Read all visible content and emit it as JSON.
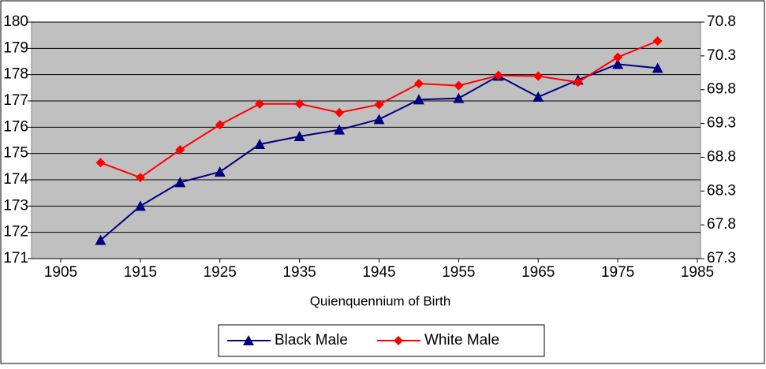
{
  "chart_data": {
    "type": "line",
    "x_label": "Quienquennium of Birth",
    "x": [
      1910,
      1915,
      1920,
      1925,
      1930,
      1935,
      1940,
      1945,
      1950,
      1955,
      1960,
      1965,
      1970,
      1975,
      1980
    ],
    "series": [
      {
        "name": "Black Male",
        "color": "#000080",
        "marker": "triangle",
        "values": [
          171.7,
          173.0,
          173.9,
          174.3,
          175.35,
          175.65,
          175.9,
          176.3,
          177.05,
          177.1,
          177.95,
          177.15,
          177.8,
          178.4,
          178.25
        ]
      },
      {
        "name": "White Male",
        "color": "#ff0000",
        "marker": "diamond",
        "axis": "y2",
        "values": [
          68.72,
          68.5,
          68.91,
          69.28,
          69.59,
          69.59,
          69.46,
          69.58,
          69.89,
          69.86,
          70.01,
          70.0,
          69.91,
          70.28,
          70.52
        ]
      }
    ],
    "xlim": [
      1905,
      1985
    ],
    "xticks": [
      1905,
      1915,
      1925,
      1935,
      1945,
      1955,
      1965,
      1975,
      1985
    ],
    "ylim": [
      171,
      180
    ],
    "yticks": [
      171,
      172,
      173,
      174,
      175,
      176,
      177,
      178,
      179,
      180
    ],
    "y2lim": [
      67.3,
      70.8
    ],
    "y2ticks": [
      67.3,
      67.8,
      68.3,
      68.8,
      69.3,
      69.8,
      70.3,
      70.8
    ],
    "grid": true,
    "legend": "bottom"
  }
}
